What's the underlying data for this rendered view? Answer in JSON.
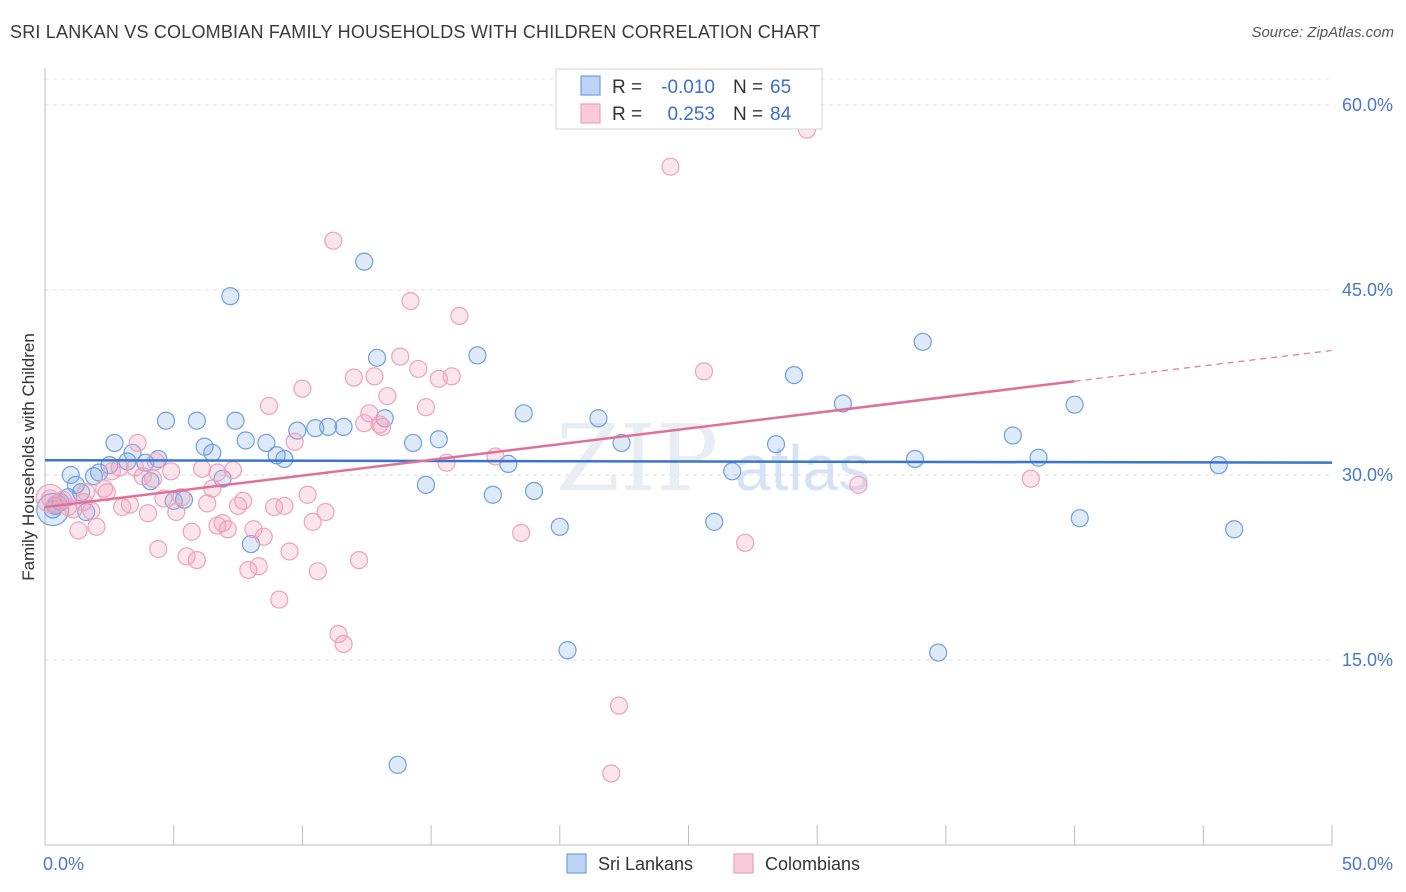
{
  "title": "SRI LANKAN VS COLOMBIAN FAMILY HOUSEHOLDS WITH CHILDREN CORRELATION CHART",
  "source": "Source: ZipAtlas.com",
  "watermark": {
    "zip": "ZIP",
    "atlas": "atlas"
  },
  "legend": {
    "r_label": "R =",
    "n_label": "N =",
    "rows": [
      {
        "r": "-0.010",
        "n": "65"
      },
      {
        "r": "0.253",
        "n": "84"
      }
    ]
  },
  "chart_data": {
    "type": "scatter",
    "title": "SRI LANKAN VS COLOMBIAN FAMILY HOUSEHOLDS WITH CHILDREN CORRELATION CHART",
    "xlabel": "",
    "ylabel": "Family Households with Children",
    "xlim": [
      0,
      50
    ],
    "ylim": [
      0,
      63
    ],
    "x_tick_labels": [
      "0.0%",
      "50.0%"
    ],
    "y_ticks": [
      15,
      30,
      45,
      60
    ],
    "y_tick_labels": [
      "15.0%",
      "30.0%",
      "45.0%",
      "60.0%"
    ],
    "grid": true,
    "legend_position": "top-center",
    "colors": {
      "sri_lankans": "#6e9fe0",
      "colombians": "#f0a0bb",
      "sri_line": "#3a75cc",
      "col_line": "#e0709a"
    },
    "series": [
      {
        "name": "Sri Lankans",
        "trend": {
          "x": [
            0,
            50
          ],
          "y": [
            31.2,
            31.0
          ]
        },
        "points": [
          [
            0.3,
            27.2
          ],
          [
            0.6,
            27.8
          ],
          [
            0.9,
            28.2
          ],
          [
            1.2,
            29.2
          ],
          [
            1.0,
            30.0
          ],
          [
            1.4,
            28.6
          ],
          [
            1.6,
            27.0
          ],
          [
            1.9,
            29.9
          ],
          [
            2.1,
            30.2
          ],
          [
            2.5,
            30.8
          ],
          [
            2.7,
            32.6
          ],
          [
            3.2,
            31.1
          ],
          [
            3.4,
            31.8
          ],
          [
            3.9,
            31.0
          ],
          [
            4.1,
            29.5
          ],
          [
            4.4,
            31.3
          ],
          [
            4.7,
            34.4
          ],
          [
            5.0,
            27.9
          ],
          [
            5.4,
            28.0
          ],
          [
            5.9,
            34.4
          ],
          [
            6.2,
            32.3
          ],
          [
            6.5,
            31.8
          ],
          [
            6.9,
            29.7
          ],
          [
            7.2,
            44.5
          ],
          [
            7.4,
            34.4
          ],
          [
            7.8,
            32.8
          ],
          [
            8.0,
            24.4
          ],
          [
            8.6,
            32.6
          ],
          [
            9.0,
            31.6
          ],
          [
            9.3,
            31.3
          ],
          [
            9.8,
            33.6
          ],
          [
            10.5,
            33.8
          ],
          [
            11.0,
            33.9
          ],
          [
            11.6,
            33.9
          ],
          [
            12.4,
            47.3
          ],
          [
            12.9,
            39.5
          ],
          [
            13.2,
            34.6
          ],
          [
            14.3,
            32.6
          ],
          [
            14.8,
            29.2
          ],
          [
            15.3,
            32.9
          ],
          [
            16.8,
            39.7
          ],
          [
            17.4,
            28.4
          ],
          [
            18.0,
            30.9
          ],
          [
            18.6,
            35.0
          ],
          [
            19.0,
            28.7
          ],
          [
            20.0,
            25.8
          ],
          [
            20.3,
            15.8
          ],
          [
            21.5,
            34.6
          ],
          [
            22.4,
            32.6
          ],
          [
            26.0,
            26.2
          ],
          [
            26.7,
            30.3
          ],
          [
            28.4,
            32.5
          ],
          [
            29.1,
            38.1
          ],
          [
            31.0,
            35.8
          ],
          [
            33.8,
            31.3
          ],
          [
            34.1,
            40.8
          ],
          [
            34.7,
            15.6
          ],
          [
            37.6,
            33.2
          ],
          [
            38.6,
            31.4
          ],
          [
            40.0,
            35.7
          ],
          [
            40.2,
            26.5
          ],
          [
            45.6,
            30.8
          ],
          [
            46.2,
            25.6
          ],
          [
            13.7,
            6.5
          ],
          [
            0.4,
            27.5
          ]
        ]
      },
      {
        "name": "Colombians",
        "trend": {
          "x": [
            0,
            40
          ],
          "y": [
            27.4,
            37.6
          ]
        },
        "trend_dashed": {
          "x": [
            40,
            50
          ],
          "y": [
            37.6,
            40.1
          ]
        },
        "points": [
          [
            0.2,
            28.1
          ],
          [
            0.4,
            27.6
          ],
          [
            0.7,
            28.0
          ],
          [
            0.9,
            27.4
          ],
          [
            1.1,
            27.2
          ],
          [
            1.3,
            25.5
          ],
          [
            1.6,
            28.6
          ],
          [
            1.8,
            27.1
          ],
          [
            2.0,
            25.8
          ],
          [
            2.3,
            28.9
          ],
          [
            2.6,
            30.3
          ],
          [
            2.9,
            30.6
          ],
          [
            3.0,
            27.4
          ],
          [
            3.3,
            27.6
          ],
          [
            3.5,
            30.6
          ],
          [
            3.6,
            32.6
          ],
          [
            3.8,
            29.9
          ],
          [
            4.0,
            26.9
          ],
          [
            4.2,
            29.7
          ],
          [
            4.4,
            24.0
          ],
          [
            4.6,
            28.1
          ],
          [
            4.9,
            30.3
          ],
          [
            5.1,
            27.0
          ],
          [
            5.3,
            28.2
          ],
          [
            5.5,
            23.4
          ],
          [
            5.7,
            25.4
          ],
          [
            5.9,
            23.1
          ],
          [
            6.1,
            30.5
          ],
          [
            6.3,
            27.7
          ],
          [
            6.5,
            28.9
          ],
          [
            6.7,
            25.9
          ],
          [
            6.9,
            26.1
          ],
          [
            7.1,
            25.6
          ],
          [
            7.3,
            30.4
          ],
          [
            7.5,
            27.5
          ],
          [
            7.7,
            27.9
          ],
          [
            7.9,
            22.3
          ],
          [
            8.1,
            25.6
          ],
          [
            8.3,
            22.6
          ],
          [
            8.5,
            25.0
          ],
          [
            8.7,
            35.6
          ],
          [
            8.9,
            27.4
          ],
          [
            9.1,
            19.9
          ],
          [
            9.5,
            23.8
          ],
          [
            9.7,
            32.7
          ],
          [
            10.0,
            37.0
          ],
          [
            10.2,
            28.4
          ],
          [
            10.4,
            26.2
          ],
          [
            10.6,
            22.2
          ],
          [
            10.9,
            27.0
          ],
          [
            11.2,
            49.0
          ],
          [
            11.4,
            17.1
          ],
          [
            11.6,
            16.3
          ],
          [
            12.0,
            37.9
          ],
          [
            12.2,
            23.1
          ],
          [
            12.4,
            34.2
          ],
          [
            12.6,
            35.0
          ],
          [
            12.8,
            38.0
          ],
          [
            13.0,
            34.1
          ],
          [
            13.3,
            36.4
          ],
          [
            13.8,
            39.6
          ],
          [
            14.2,
            44.1
          ],
          [
            14.5,
            38.6
          ],
          [
            14.8,
            35.5
          ],
          [
            15.3,
            37.8
          ],
          [
            15.6,
            31.0
          ],
          [
            15.8,
            38.0
          ],
          [
            16.1,
            42.9
          ],
          [
            17.5,
            31.5
          ],
          [
            18.5,
            25.3
          ],
          [
            22.3,
            11.3
          ],
          [
            22.0,
            5.8
          ],
          [
            24.3,
            55.0
          ],
          [
            25.6,
            38.4
          ],
          [
            27.2,
            24.5
          ],
          [
            29.6,
            58.0
          ],
          [
            31.6,
            29.2
          ],
          [
            38.3,
            29.7
          ],
          [
            2.4,
            28.6
          ],
          [
            6.7,
            30.2
          ],
          [
            9.3,
            27.5
          ],
          [
            13.1,
            33.9
          ],
          [
            4.3,
            31.1
          ],
          [
            1.5,
            27.8
          ]
        ]
      }
    ]
  },
  "bottom_legend": [
    {
      "label": "Sri Lankans"
    },
    {
      "label": "Colombians"
    }
  ]
}
